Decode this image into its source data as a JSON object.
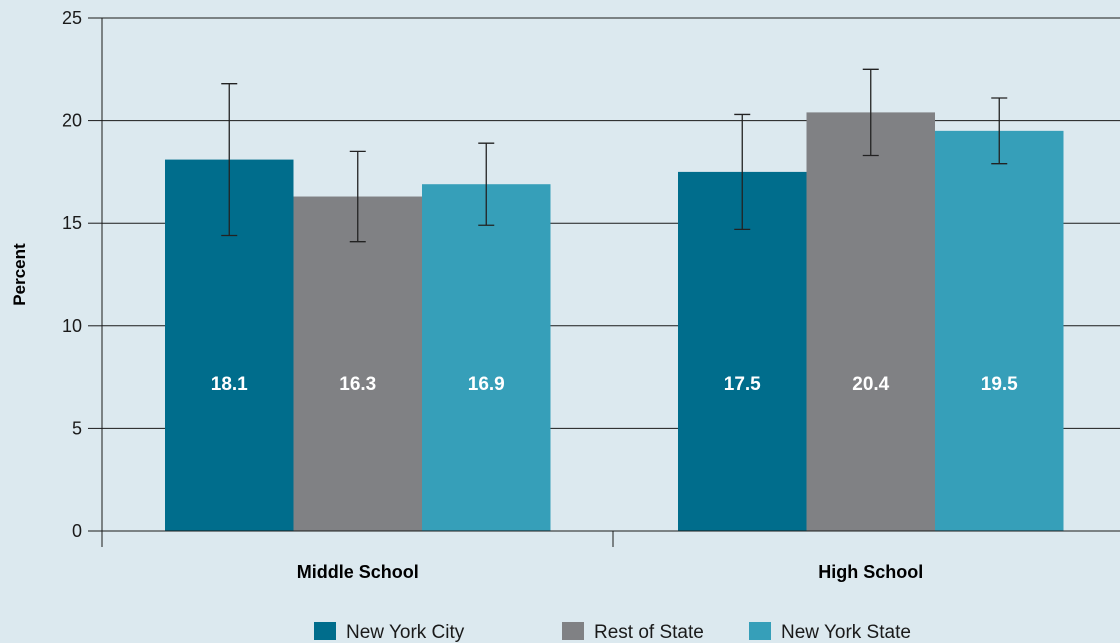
{
  "chart_data": {
    "type": "bar",
    "title": "",
    "xlabel": "",
    "ylabel": "Percent",
    "ylim": [
      0,
      25
    ],
    "yticks": [
      0,
      5,
      10,
      15,
      20,
      25
    ],
    "grid": true,
    "legend_position": "bottom",
    "categories": [
      "Middle School",
      "High School"
    ],
    "series": [
      {
        "name": "New York City",
        "color": "#006d8c",
        "values": [
          18.1,
          17.5
        ],
        "value_labels": [
          "18.1",
          "17.5"
        ],
        "error_low": [
          14.4,
          14.7
        ],
        "error_high": [
          21.8,
          20.3
        ]
      },
      {
        "name": "Rest of State",
        "color": "#808184",
        "values": [
          16.3,
          20.4
        ],
        "value_labels": [
          "16.3",
          "20.4"
        ],
        "error_low": [
          14.1,
          18.3
        ],
        "error_high": [
          18.5,
          22.5
        ]
      },
      {
        "name": "New York State",
        "color": "#369fb9",
        "values": [
          16.9,
          19.5
        ],
        "value_labels": [
          "16.9",
          "19.5"
        ],
        "error_low": [
          14.9,
          17.9
        ],
        "error_high": [
          18.9,
          21.1
        ]
      }
    ]
  }
}
